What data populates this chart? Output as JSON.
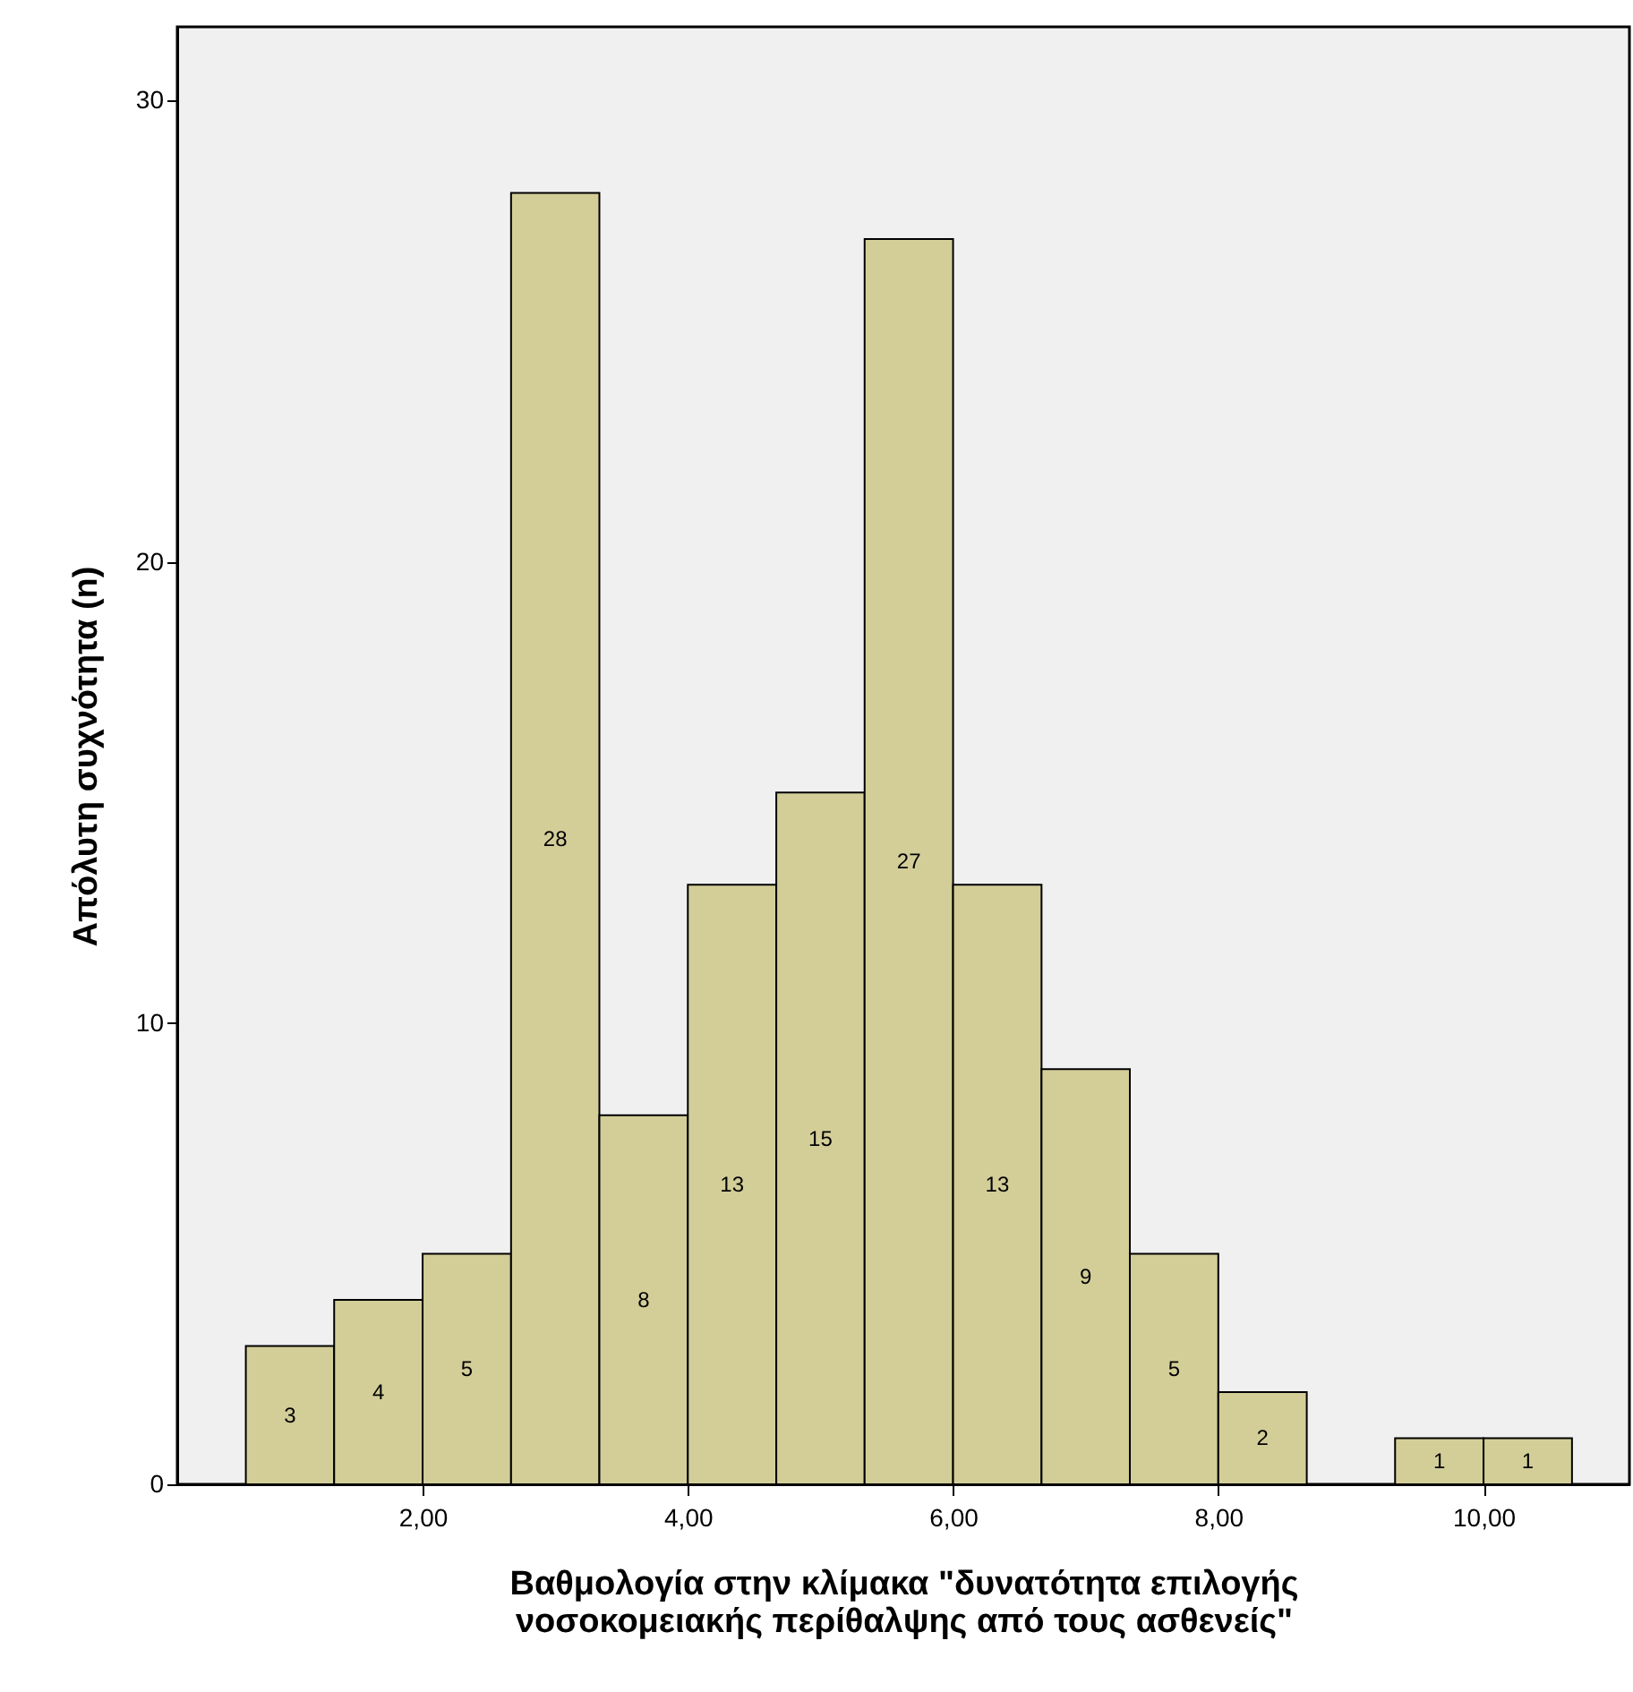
{
  "chart_data": {
    "type": "histogram",
    "xlabel": "Βαθμολογία στην κλίμακα \"δυνατότητα επιλογής νοσοκομειακής περίθαλψης από τους ασθενείς\"",
    "ylabel": "Απόλυτη συχνότητα (n)",
    "bins": [
      0.667,
      1.333,
      2,
      2.667,
      3.333,
      4,
      4.667,
      5.333,
      6,
      6.667,
      7.333,
      8,
      8.667,
      9.333,
      10,
      10.667
    ],
    "values": [
      3,
      4,
      5,
      28,
      8,
      13,
      15,
      27,
      13,
      9,
      5,
      2,
      0,
      1,
      1
    ],
    "value_labels": [
      "3",
      "4",
      "5",
      "28",
      "8",
      "13",
      "15",
      "27",
      "13",
      "9",
      "5",
      "2",
      null,
      "1",
      "1"
    ],
    "color": "#d3ce98",
    "xlim": [
      0.15,
      11.1
    ],
    "xticks": [
      {
        "value": 2,
        "label": "2,00"
      },
      {
        "value": 4,
        "label": "4,00"
      },
      {
        "value": 6,
        "label": "6,00"
      },
      {
        "value": 8,
        "label": "8,00"
      },
      {
        "value": 10,
        "label": "10,00"
      }
    ],
    "ylim": [
      0,
      31.6
    ],
    "yticks": [
      0,
      10,
      20,
      30
    ],
    "grid": false
  }
}
